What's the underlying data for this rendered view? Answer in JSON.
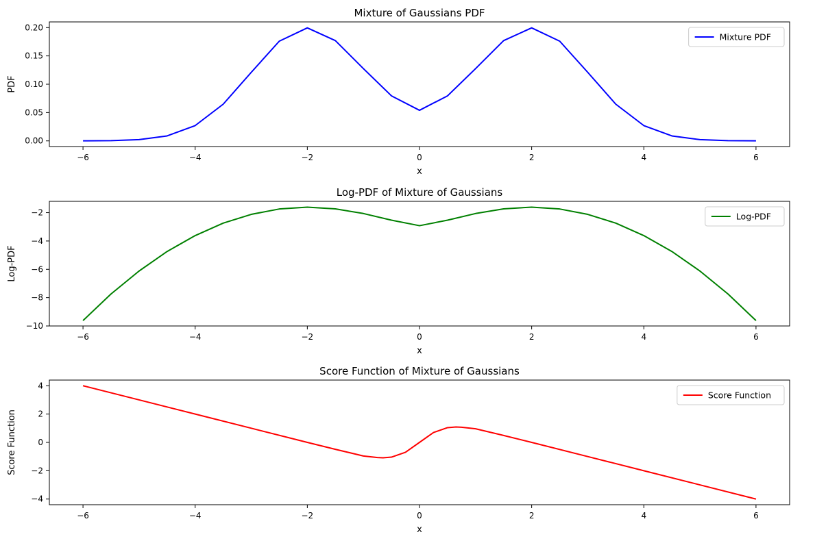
{
  "chart_data": [
    {
      "type": "line",
      "title": "Mixture of Gaussians PDF",
      "xlabel": "x",
      "ylabel": "PDF",
      "xlim": [
        -6.6,
        6.6
      ],
      "ylim": [
        -0.01,
        0.21
      ],
      "xticks": [
        -6,
        -4,
        -2,
        0,
        2,
        4,
        6
      ],
      "xtick_labels": [
        "−6",
        "−4",
        "−2",
        "0",
        "2",
        "4",
        "6"
      ],
      "yticks": [
        0,
        0.05,
        0.1,
        0.15,
        0.2
      ],
      "ytick_labels": [
        "0.00",
        "0.05",
        "0.10",
        "0.15",
        "0.20"
      ],
      "grid": false,
      "legend": "top-right",
      "series": [
        {
          "name": "Mixture PDF",
          "color": "#0000ff",
          "x": [
            -6,
            -5.5,
            -5,
            -4.5,
            -4,
            -3.5,
            -3,
            -2.5,
            -2,
            -1.5,
            -1,
            -0.5,
            0,
            0.5,
            1,
            1.5,
            2,
            2.5,
            3,
            3.5,
            4,
            4.5,
            5,
            5.5,
            6
          ],
          "y": [
            0.0001,
            0.0004,
            0.0022,
            0.0088,
            0.027,
            0.0648,
            0.121,
            0.176,
            0.1995,
            0.177,
            0.1276,
            0.0795,
            0.054,
            0.0795,
            0.1276,
            0.177,
            0.1995,
            0.176,
            0.121,
            0.0648,
            0.027,
            0.0088,
            0.0022,
            0.0004,
            0.0001
          ]
        }
      ]
    },
    {
      "type": "line",
      "title": "Log-PDF of Mixture of Gaussians",
      "xlabel": "x",
      "ylabel": "Log-PDF",
      "xlim": [
        -6.6,
        6.6
      ],
      "ylim": [
        -10,
        -1.2
      ],
      "xticks": [
        -6,
        -4,
        -2,
        0,
        2,
        4,
        6
      ],
      "xtick_labels": [
        "−6",
        "−4",
        "−2",
        "0",
        "2",
        "4",
        "6"
      ],
      "yticks": [
        -10,
        -8,
        -6,
        -4,
        -2
      ],
      "ytick_labels": [
        "−10",
        "−8",
        "−6",
        "−4",
        "−2"
      ],
      "grid": false,
      "legend": "top-right",
      "series": [
        {
          "name": "Log-PDF",
          "color": "#008000",
          "x": [
            -6,
            -5.5,
            -5,
            -4.5,
            -4,
            -3.5,
            -3,
            -2.5,
            -2,
            -1.5,
            -1,
            -0.5,
            0,
            0.5,
            1,
            1.5,
            2,
            2.5,
            3,
            3.5,
            4,
            4.5,
            5,
            5.5,
            6
          ],
          "y": [
            -9.62,
            -7.74,
            -6.12,
            -4.74,
            -3.62,
            -2.74,
            -2.12,
            -1.74,
            -1.61,
            -1.73,
            -2.06,
            -2.53,
            -2.92,
            -2.53,
            -2.06,
            -1.73,
            -1.61,
            -1.74,
            -2.12,
            -2.74,
            -3.62,
            -4.74,
            -6.12,
            -7.74,
            -9.62
          ]
        }
      ]
    },
    {
      "type": "line",
      "title": "Score Function of Mixture of Gaussians",
      "xlabel": "x",
      "ylabel": "Score Function",
      "xlim": [
        -6.6,
        6.6
      ],
      "ylim": [
        -4.4,
        4.4
      ],
      "xticks": [
        -6,
        -4,
        -2,
        0,
        2,
        4,
        6
      ],
      "xtick_labels": [
        "−6",
        "−4",
        "−2",
        "0",
        "2",
        "4",
        "6"
      ],
      "yticks": [
        -4,
        -2,
        0,
        2,
        4
      ],
      "ytick_labels": [
        "−4",
        "−2",
        "0",
        "2",
        "4"
      ],
      "grid": false,
      "legend": "top-right",
      "series": [
        {
          "name": "Score Function",
          "color": "#ff0000",
          "x": [
            -6,
            -5,
            -4,
            -3,
            -2,
            -1.5,
            -1,
            -0.75,
            -0.65,
            -0.5,
            -0.25,
            0,
            0.25,
            0.5,
            0.65,
            0.75,
            1,
            1.5,
            2,
            3,
            4,
            5,
            6
          ],
          "y": [
            4,
            3,
            2,
            1,
            0,
            -0.49,
            -0.96,
            -1.07,
            -1.09,
            -1.04,
            -0.7,
            0,
            0.7,
            1.04,
            1.09,
            1.07,
            0.96,
            0.49,
            0,
            -1,
            -2,
            -3,
            -4
          ]
        }
      ]
    }
  ]
}
